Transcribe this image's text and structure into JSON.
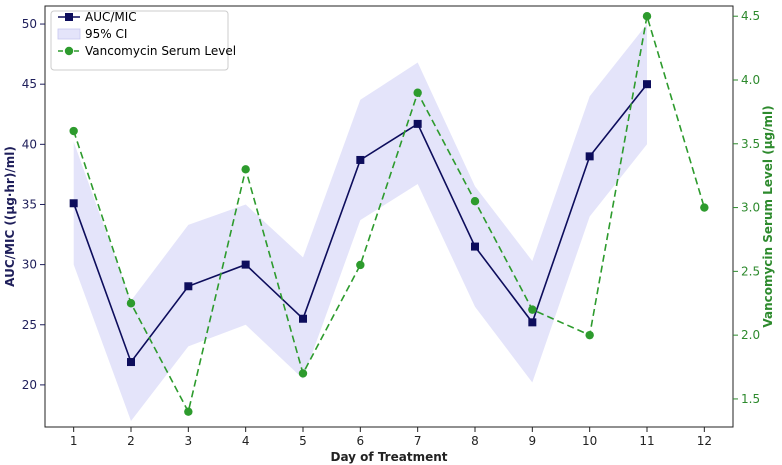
{
  "chart_data": {
    "type": "line",
    "xlabel": "Day of Treatment",
    "ylabel_left": "AUC/MIC ((µg·hr)/ml)",
    "ylabel_right": "Vancomycin Serum Level (µg/ml)",
    "x_ticks": [
      1,
      2,
      3,
      4,
      5,
      6,
      7,
      8,
      9,
      10,
      11,
      12
    ],
    "xlim": [
      0.5,
      12.5
    ],
    "ylim_left": [
      16.5,
      51.5
    ],
    "ylim_right": [
      1.28,
      4.58
    ],
    "y_ticks_left": [
      20,
      25,
      30,
      35,
      40,
      45,
      50
    ],
    "y_ticks_right": [
      1.5,
      2.0,
      2.5,
      3.0,
      3.5,
      4.0,
      4.5
    ],
    "colors": {
      "auc": "#0d0d5c",
      "ci": "#e4e4fa",
      "vanco": "#2d9b2d",
      "left_axis": "#1e1e5a",
      "right_axis": "#2d8a2d"
    },
    "series": [
      {
        "name": "AUC/MIC",
        "axis": "left",
        "x": [
          1,
          2,
          3,
          4,
          5,
          6,
          7,
          8,
          9,
          10,
          11
        ],
        "values": [
          35.1,
          21.9,
          28.2,
          30.0,
          25.5,
          38.7,
          41.7,
          31.5,
          25.2,
          39.0,
          45.0
        ]
      },
      {
        "name": "95% CI",
        "axis": "left",
        "x": [
          1,
          2,
          3,
          4,
          5,
          6,
          7,
          8,
          9,
          10,
          11
        ],
        "lower": [
          30.0,
          17.0,
          23.2,
          25.0,
          20.5,
          33.7,
          36.7,
          26.5,
          20.2,
          34.0,
          40.0
        ],
        "upper": [
          40.2,
          27.0,
          33.3,
          35.0,
          30.6,
          43.7,
          46.8,
          36.5,
          30.3,
          44.0,
          50.0
        ]
      },
      {
        "name": "Vancomycin Serum Level",
        "axis": "right",
        "x": [
          1,
          2,
          3,
          4,
          5,
          6,
          7,
          8,
          9,
          10,
          11,
          12
        ],
        "values": [
          3.6,
          2.25,
          1.4,
          3.3,
          1.7,
          2.55,
          3.9,
          3.05,
          2.2,
          2.0,
          4.5,
          3.0
        ]
      }
    ],
    "legend": {
      "placement": "top-left",
      "entries": [
        "AUC/MIC",
        "95% CI",
        "Vancomycin Serum Level"
      ]
    }
  }
}
